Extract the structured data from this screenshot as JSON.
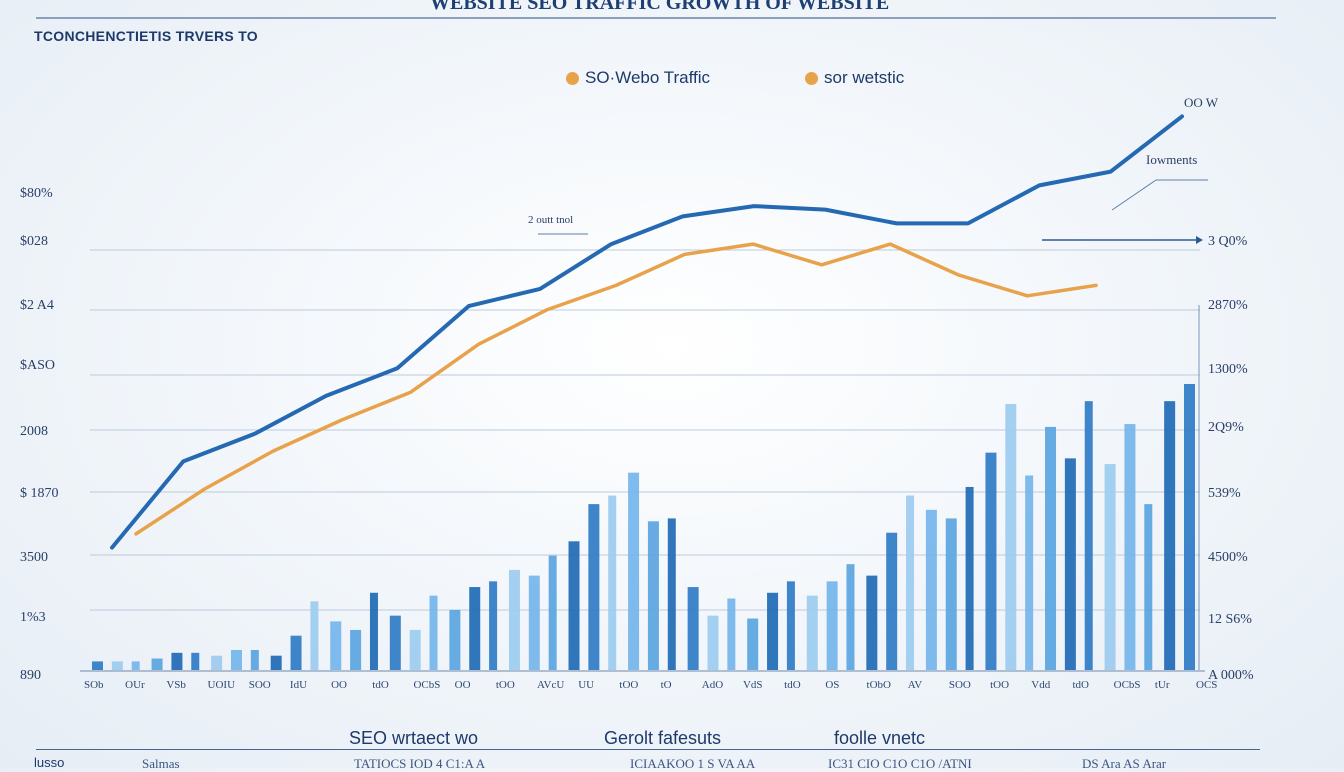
{
  "chart_data": {
    "type": "bar",
    "title": "WEBSITE SEO TRAFFIC GROWTH OF WEBSITE",
    "subtitle": "TCONCHENCTIETIS TRVERS TO",
    "legend": {
      "placement": "top-center",
      "items": [
        {
          "label": "SO·Webo Traffic",
          "color": "#e8a24a"
        },
        {
          "label": "sor wetstic",
          "color": "#e8a24a"
        }
      ]
    },
    "y_ticks_left": [
      "$80%",
      "$028",
      "$2 A4",
      "$ASO",
      "2008",
      "$ 1870",
      "3500",
      "1%3",
      "890"
    ],
    "y_ticks_right": [
      "3 Q0%",
      "2870%",
      "1300%",
      "2Q9%",
      "539%",
      "4500%",
      "12 S6%",
      "A 000%"
    ],
    "annotations": {
      "top_right": "OO W",
      "right_note": "Iowments",
      "mid_note": "2 outt tnol"
    },
    "grid": "horizontal",
    "series": [
      {
        "kind": "line",
        "color": "#2469b2",
        "values": [
          0.03,
          0.28,
          0.36,
          0.47,
          0.55,
          0.73,
          0.78,
          0.91,
          0.99,
          1.02,
          1.01,
          0.97,
          0.97,
          1.08,
          1.12,
          1.28
        ]
      },
      {
        "kind": "line",
        "color": "#e8a24a",
        "values": [
          0.07,
          0.2,
          0.31,
          0.4,
          0.48,
          0.62,
          0.72,
          0.79,
          0.88,
          0.91,
          0.85,
          0.91,
          0.82,
          0.76,
          0.79
        ]
      },
      {
        "kind": "bar",
        "color": "#2f7bc5",
        "values": [
          0.03,
          0.03,
          0.03,
          0.04,
          0.06,
          0.06,
          0.05,
          0.07,
          0.07,
          0.05,
          0.12,
          0.24,
          0.17,
          0.14,
          0.27,
          0.19,
          0.14,
          0.26,
          0.21,
          0.29,
          0.31,
          0.35,
          0.33,
          0.4,
          0.45,
          0.58,
          0.61,
          0.69,
          0.52,
          0.53,
          0.29,
          0.19,
          0.25,
          0.18,
          0.27,
          0.31,
          0.26,
          0.31,
          0.37,
          0.33,
          0.48,
          0.61,
          0.56,
          0.53,
          0.64,
          0.76,
          0.93,
          0.68,
          0.85,
          0.74,
          0.94,
          0.72,
          0.86,
          0.58,
          0.94,
          1.0
        ],
        "categories": [
          "SOb",
          "OUr",
          "VSb",
          "UOIU",
          "SOO",
          "IdU",
          "OO",
          "tdO",
          "OCbS",
          "OO",
          "tOO",
          "AVcU",
          "UU",
          "tOO",
          "tO",
          "AdO",
          "VdS",
          "tdO",
          "OS",
          "tObO",
          "AV",
          "SOO",
          "tOO",
          "Vdd",
          "tdO",
          "OCbS",
          "tUr",
          "OCS"
        ]
      }
    ],
    "footer": {
      "left_label": "lusso",
      "left_small": "Salmas",
      "seo_label": "SEO  wrtaect  wo",
      "seo_small": "TATIOCS  IOD  4   C1:A A",
      "mid_label": "Gerolt  fafesuts",
      "mid_small": "ICIAAKOO   1  S  VA  AA",
      "right_label": "foolle  vnetc",
      "right_small": "IC31   CIO  C1O    C1O  /ATNI",
      "far_right_small": "DS  Ara   AS  Arar"
    }
  }
}
